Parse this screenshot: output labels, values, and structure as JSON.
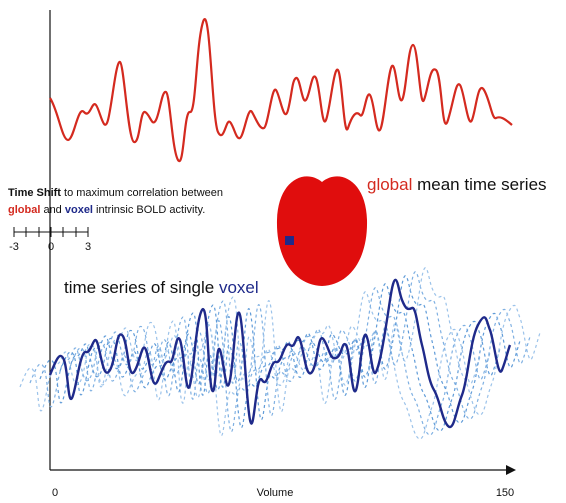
{
  "global_label": {
    "highlight": "global",
    "rest": " mean time series"
  },
  "time_shift": {
    "bold": "Time Shift",
    "line1": " to maximum correlation between",
    "global": "global",
    "and": " and ",
    "voxel": "voxel",
    "line2": " intrinsic BOLD activity."
  },
  "scale": {
    "ticks": [
      "-3",
      "0",
      "3"
    ]
  },
  "voxel_label": {
    "text": "time series of single ",
    "voxel": "voxel"
  },
  "x_axis": {
    "label": "Volume",
    "ticks": [
      "0",
      "150"
    ]
  }
}
